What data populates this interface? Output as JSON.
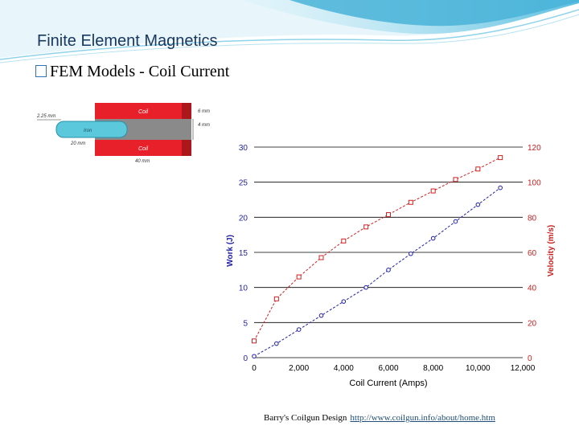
{
  "slide": {
    "title": "Finite Element Magnetics",
    "bullet": "FEM Models - Coil Current"
  },
  "diagram": {
    "labels": {
      "coil_top": "Coil",
      "coil_bottom": "Coil",
      "iron": "Iron",
      "dim_left": "2.25 mm",
      "dim_top_right": "6 mm",
      "dim_right": "4 mm",
      "dim_bottom_left": "20 mm",
      "dim_bottom": "40 mm"
    },
    "colors": {
      "coil": "#e8202a",
      "iron": "#5bc8dc",
      "bore": "#8a8a8a"
    }
  },
  "chart_data": {
    "type": "line",
    "xlabel": "Coil Current (Amps)",
    "ylabel": "Work (J)",
    "y2label": "Velocity (m/s)",
    "xlim": [
      0,
      12000
    ],
    "ylim": [
      0,
      30
    ],
    "y2lim": [
      0,
      120
    ],
    "x_ticks": [
      "0",
      "2,000",
      "4,000",
      "6,000",
      "8,000",
      "10,000",
      "12,000"
    ],
    "y_ticks": [
      "0",
      "5",
      "10",
      "15",
      "20",
      "25",
      "30"
    ],
    "y2_ticks": [
      "0",
      "20",
      "40",
      "60",
      "80",
      "100",
      "120"
    ],
    "grid": "horizontal",
    "series": [
      {
        "axis": "left",
        "color": "#1f1fa8",
        "marker": "circle",
        "x": [
          0,
          1000,
          2000,
          3000,
          4000,
          5000,
          6000,
          7000,
          8000,
          9000,
          10000,
          11000
        ],
        "values": [
          0.2,
          2,
          4,
          6,
          8,
          10,
          12.5,
          14.8,
          17,
          19.4,
          21.8,
          24.2
        ]
      },
      {
        "axis": "right",
        "color": "#d02020",
        "marker": "square",
        "x": [
          0,
          1000,
          2000,
          3000,
          4000,
          5000,
          6000,
          7000,
          8000,
          9000,
          10000,
          11000
        ],
        "values": [
          9.5,
          33.5,
          46,
          57,
          66.5,
          74.5,
          81.5,
          88.5,
          95,
          101.5,
          107.5,
          114
        ]
      }
    ]
  },
  "footer": {
    "credit": "Barry's Coilgun Design",
    "link": "http://www.coilgun.info/about/home.htm"
  }
}
